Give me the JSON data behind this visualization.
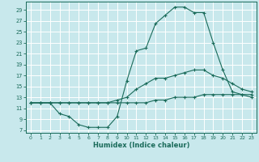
{
  "xlabel": "Humidex (Indice chaleur)",
  "xlim": [
    -0.5,
    23.5
  ],
  "ylim": [
    6.5,
    30.5
  ],
  "yticks": [
    7,
    9,
    11,
    13,
    15,
    17,
    19,
    21,
    23,
    25,
    27,
    29
  ],
  "xticks": [
    0,
    1,
    2,
    3,
    4,
    5,
    6,
    7,
    8,
    9,
    10,
    11,
    12,
    13,
    14,
    15,
    16,
    17,
    18,
    19,
    20,
    21,
    22,
    23
  ],
  "background_color": "#c8e8ec",
  "grid_color": "#b0d8dc",
  "line_color": "#1a6b5a",
  "series": [
    [
      12.0,
      12.0,
      12.0,
      10.0,
      9.5,
      8.0,
      7.5,
      7.5,
      7.5,
      9.5,
      16.0,
      21.5,
      22.0,
      26.5,
      28.0,
      29.5,
      29.5,
      28.5,
      28.5,
      23.0,
      18.0,
      14.0,
      13.5,
      13.0
    ],
    [
      12.0,
      12.0,
      12.0,
      12.0,
      12.0,
      12.0,
      12.0,
      12.0,
      12.0,
      12.5,
      13.0,
      14.5,
      15.5,
      16.5,
      16.5,
      17.0,
      17.5,
      18.0,
      18.0,
      17.0,
      16.5,
      15.5,
      14.5,
      14.0
    ],
    [
      12.0,
      12.0,
      12.0,
      12.0,
      12.0,
      12.0,
      12.0,
      12.0,
      12.0,
      12.0,
      12.0,
      12.0,
      12.0,
      12.5,
      12.5,
      13.0,
      13.0,
      13.0,
      13.5,
      13.5,
      13.5,
      13.5,
      13.5,
      13.5
    ]
  ]
}
